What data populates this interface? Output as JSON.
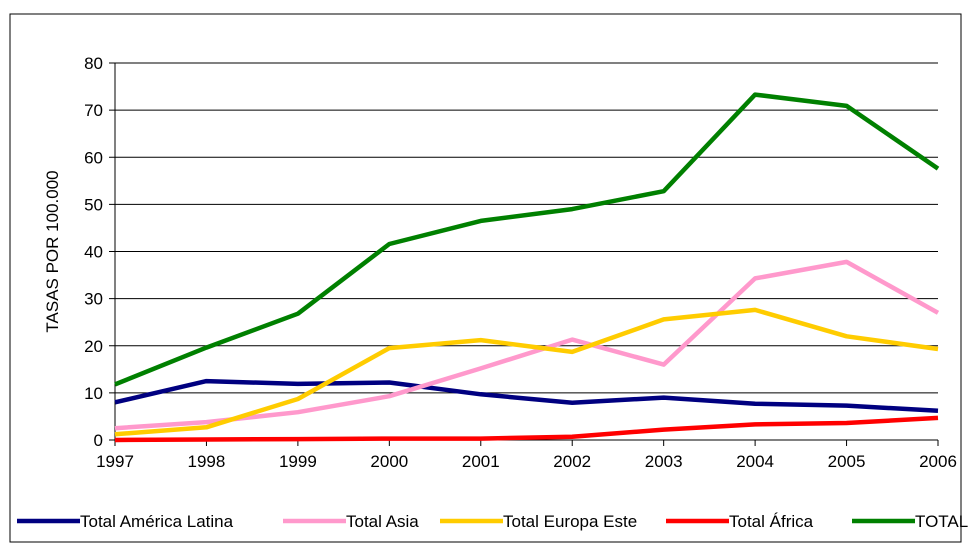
{
  "chart_data": {
    "type": "line",
    "title": "",
    "xlabel": "",
    "ylabel": "TASAS POR 100.000",
    "categories": [
      "1997",
      "1998",
      "1999",
      "2000",
      "2001",
      "2002",
      "2003",
      "2004",
      "2005",
      "2006"
    ],
    "ylim": [
      0,
      80
    ],
    "yticks": [
      0,
      10,
      20,
      30,
      40,
      50,
      60,
      70,
      80
    ],
    "grid": true,
    "legend": "bottom",
    "series": [
      {
        "name": "Total América Latina",
        "color": "#000080",
        "values": [
          8.0,
          12.5,
          11.9,
          12.2,
          9.7,
          7.9,
          9.0,
          7.7,
          7.3,
          6.2
        ]
      },
      {
        "name": "Total Asia",
        "color": "#ff99cc",
        "values": [
          2.5,
          3.8,
          5.9,
          9.3,
          15.2,
          21.3,
          16.0,
          34.3,
          37.8,
          27.0
        ]
      },
      {
        "name": "Total Europa Este",
        "color": "#ffcc00",
        "values": [
          1.2,
          2.7,
          8.7,
          19.5,
          21.2,
          18.7,
          25.6,
          27.6,
          22.0,
          19.3
        ]
      },
      {
        "name": "Total África",
        "color": "#ff0000",
        "values": [
          0.0,
          0.1,
          0.2,
          0.3,
          0.3,
          0.7,
          2.2,
          3.3,
          3.6,
          4.7
        ]
      },
      {
        "name": "TOTAL",
        "color": "#008000",
        "values": [
          11.8,
          19.6,
          26.8,
          41.6,
          46.5,
          49.0,
          52.8,
          73.3,
          70.9,
          57.6
        ]
      }
    ]
  }
}
